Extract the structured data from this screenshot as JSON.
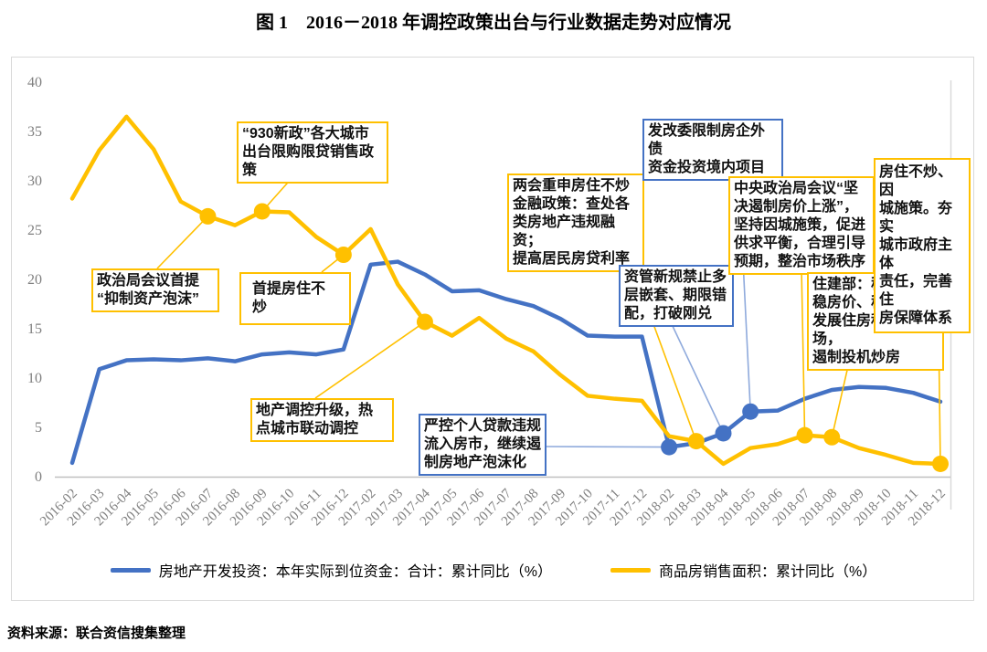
{
  "page": {
    "title": "图 1　2016－2018 年调控政策出台与行业数据走势对应情况",
    "source_note": "资料来源：联合资信搜集整理"
  },
  "chart_data": {
    "type": "line",
    "title": "图 1　2016－2018 年调控政策出台与行业数据走势对应情况",
    "categories": [
      "2016-02",
      "2016-03",
      "2016-04",
      "2016-05",
      "2016-06",
      "2016-07",
      "2016-08",
      "2016-09",
      "2016-10",
      "2016-11",
      "2016-12",
      "2017-02",
      "2017-03",
      "2017-04",
      "2017-05",
      "2017-06",
      "2017-07",
      "2017-08",
      "2017-09",
      "2017-10",
      "2017-11",
      "2017-12",
      "2018-02",
      "2018-03",
      "2018-04",
      "2018-05",
      "2018-06",
      "2018-07",
      "2018-08",
      "2018-09",
      "2018-10",
      "2018-11",
      "2018-12"
    ],
    "ylim": [
      0,
      40
    ],
    "ytick_step": 5,
    "grid": false,
    "legend_position": "bottom",
    "axis_color": "#7F7F7F",
    "series": [
      {
        "id": "investment",
        "name": "房地产开发投资：本年实际到位资金：合计：累计同比（%）",
        "color": "#4472C4",
        "values": [
          1.4,
          10.9,
          11.8,
          11.9,
          11.8,
          12.0,
          11.7,
          12.4,
          12.6,
          12.4,
          12.9,
          21.5,
          21.8,
          20.5,
          18.8,
          18.9,
          18.0,
          17.3,
          16.0,
          14.3,
          14.2,
          14.2,
          3.0,
          3.4,
          4.4,
          6.6,
          6.7,
          7.9,
          8.8,
          9.1,
          9.0,
          8.5,
          7.6
        ],
        "markers": [
          "2018-02",
          "2018-04",
          "2018-05"
        ]
      },
      {
        "id": "sales",
        "name": "商品房销售面积：累计同比（%）",
        "color": "#FFC000",
        "values": [
          28.2,
          33.1,
          36.5,
          33.2,
          27.9,
          26.4,
          25.5,
          26.9,
          26.8,
          24.3,
          22.5,
          25.1,
          19.5,
          15.7,
          14.3,
          16.1,
          14.0,
          12.7,
          10.3,
          8.2,
          7.9,
          7.7,
          4.1,
          3.6,
          1.3,
          2.9,
          3.3,
          4.2,
          4.0,
          2.9,
          2.2,
          1.4,
          1.3
        ],
        "markers": [
          "2016-07",
          "2016-09",
          "2016-12",
          "2017-04",
          "2018-03",
          "2018-07",
          "2018-08",
          "2018-12"
        ]
      }
    ],
    "annotations": [
      {
        "id": "yizhipaomo",
        "text": "政治局会议首提\n“抑制资产泡沫”",
        "border_color": "#FFC000",
        "leader_color": "#FFC000",
        "series": 1,
        "target": "2016-07"
      },
      {
        "id": "xinzheng930",
        "text": "“930新政”各大城市\n出台限购限贷销售政策",
        "border_color": "#FFC000",
        "leader_color": "#FFC000",
        "series": 1,
        "target": "2016-09"
      },
      {
        "id": "shoutifangzhu",
        "text": "首提房住不炒",
        "border_color": "#FFC000",
        "leader_color": "#FFC000",
        "series": 1,
        "target": "2016-12"
      },
      {
        "id": "diaokongshengji",
        "text": "地产调控升级，热\n点城市联动调控",
        "border_color": "#FFC000",
        "leader_color": "#FFC000",
        "series": 1,
        "target": "2017-04"
      },
      {
        "id": "lianghui",
        "text": "两会重申房住不炒\n金融政策：查处各\n类房地产违规融资；\n提高居民房贷利率",
        "border_color": "#FFC000",
        "leader_color": "#FFC000",
        "series": 1,
        "target": "2018-03"
      },
      {
        "id": "fagaiwei",
        "text": "发改委限制房企外债\n资金投资境内项目",
        "border_color": "#4472C4",
        "leader_color": "#8FAADC",
        "series": 0,
        "target": "2018-05"
      },
      {
        "id": "ziguanxingui",
        "text": "资管新规禁止多\n层嵌套、期限错\n配，打破刚兑",
        "border_color": "#4472C4",
        "leader_color": "#8FAADC",
        "series": 0,
        "target": "2018-04"
      },
      {
        "id": "yankongdaikuan",
        "text": "严控个人贷款违规\n流入房市，继续遏\n制房地产泡沫化",
        "border_color": "#4472C4",
        "leader_color": "#8FAADC",
        "series": 0,
        "target": "2018-02"
      },
      {
        "id": "zhongyangzhengzhiju",
        "text": "中央政治局会议“坚\n决遏制房价上涨”，\n坚持因城施策，促进\n供求平衡，合理引导\n预期，整治市场秩序",
        "border_color": "#FFC000",
        "leader_color": "#FFC000",
        "series": 1,
        "target": "2018-07"
      },
      {
        "id": "zhujianbu",
        "text": "住建部：稳地价、\n稳房价、稳预期，\n发展住房租赁市场，\n遏制投机炒房",
        "border_color": "#FFC000",
        "leader_color": "#FFC000",
        "series": 1,
        "target": "2018-08"
      },
      {
        "id": "fangzhubuchao",
        "text": "房住不炒、因\n城施策。夯实\n城市政府主体\n责任，完善住\n房保障体系",
        "border_color": "#FFC000",
        "leader_color": "#FFC000",
        "series": 1,
        "target": "2018-12"
      }
    ]
  }
}
